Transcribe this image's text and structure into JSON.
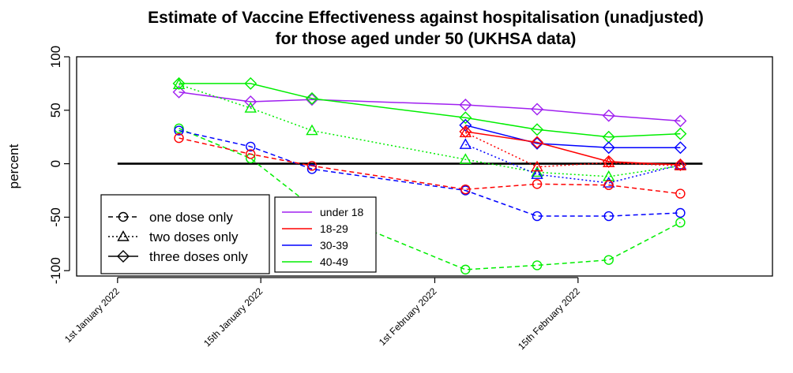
{
  "chart_data": {
    "type": "line",
    "title": [
      "Estimate of Vaccine Effectiveness against hospitalisation (unadjusted)",
      "for those aged under 50 (UKHSA data)"
    ],
    "ylabel": "percent",
    "xlabel": "",
    "ylim": [
      -105,
      100
    ],
    "yticks": [
      100,
      50,
      0,
      -50,
      -100
    ],
    "ytick_labels": [
      "100",
      "50",
      "0",
      "-50",
      "-100"
    ],
    "xlim": [
      "2021-12-28",
      "2022-03-06"
    ],
    "xticks": [
      "2022-01-01",
      "2022-01-15",
      "2022-02-01",
      "2022-02-15"
    ],
    "xtick_labels": [
      "1st January 2022",
      "15th January 2022",
      "1st February 2022",
      "15th February 2022"
    ],
    "reference_line": 0,
    "dates": [
      "2022-01-07",
      "2022-01-14",
      "2022-01-20",
      "2022-02-04",
      "2022-02-11",
      "2022-02-18",
      "2022-02-25"
    ],
    "series": [
      {
        "name": "under 18",
        "dose": "three doses only",
        "color": "#a020f0",
        "dash": "solid",
        "marker": "diamond",
        "values": [
          67,
          58,
          60,
          55,
          51,
          45,
          40
        ]
      },
      {
        "name": "40-49",
        "dose": "three doses only",
        "color": "#00ee00",
        "dash": "solid",
        "marker": "diamond",
        "values": [
          75,
          75,
          61,
          43,
          32,
          25,
          28
        ]
      },
      {
        "name": "40-49",
        "dose": "two doses only",
        "color": "#00ee00",
        "dash": "dotted",
        "marker": "triangle",
        "values": [
          74,
          52,
          31,
          4,
          -8,
          -12,
          -2
        ]
      },
      {
        "name": "40-49",
        "dose": "one dose only",
        "color": "#00ee00",
        "dash": "dashed",
        "marker": "circle",
        "values": [
          33,
          5,
          -40,
          -99,
          -95,
          -90,
          -55
        ]
      },
      {
        "name": "30-39",
        "dose": "three doses only",
        "color": "#0000ff",
        "dash": "solid",
        "marker": "diamond",
        "values": [
          null,
          null,
          null,
          36,
          19,
          15,
          15
        ]
      },
      {
        "name": "30-39",
        "dose": "two doses only",
        "color": "#0000ff",
        "dash": "dotted",
        "marker": "triangle",
        "values": [
          null,
          null,
          null,
          18,
          -10,
          -18,
          -1
        ]
      },
      {
        "name": "30-39",
        "dose": "one dose only",
        "color": "#0000ff",
        "dash": "dashed",
        "marker": "circle",
        "values": [
          31,
          16,
          -5,
          -25,
          -49,
          -49,
          -46
        ]
      },
      {
        "name": "18-29",
        "dose": "three doses only",
        "color": "#ff0000",
        "dash": "solid",
        "marker": "diamond",
        "values": [
          null,
          null,
          null,
          30,
          20,
          2,
          -1
        ]
      },
      {
        "name": "18-29",
        "dose": "two doses only",
        "color": "#ff0000",
        "dash": "dotted",
        "marker": "triangle",
        "values": [
          null,
          null,
          null,
          29,
          -3,
          1,
          -2
        ]
      },
      {
        "name": "18-29",
        "dose": "one dose only",
        "color": "#ff0000",
        "dash": "dashed",
        "marker": "circle",
        "values": [
          24,
          9,
          -2,
          -24,
          -19,
          -20,
          -28
        ]
      }
    ],
    "legend_doses": [
      {
        "label": "one dose only",
        "dash": "dashed",
        "marker": "circle"
      },
      {
        "label": "two doses only",
        "dash": "dotted",
        "marker": "triangle"
      },
      {
        "label": "three doses only",
        "dash": "solid",
        "marker": "diamond"
      }
    ],
    "legend_groups": [
      {
        "label": "under 18",
        "color": "#a020f0"
      },
      {
        "label": "18-29",
        "color": "#ff0000"
      },
      {
        "label": "30-39",
        "color": "#0000ff"
      },
      {
        "label": "40-49",
        "color": "#00ee00"
      }
    ],
    "legend_placement": "bottom-left",
    "grid": false
  }
}
